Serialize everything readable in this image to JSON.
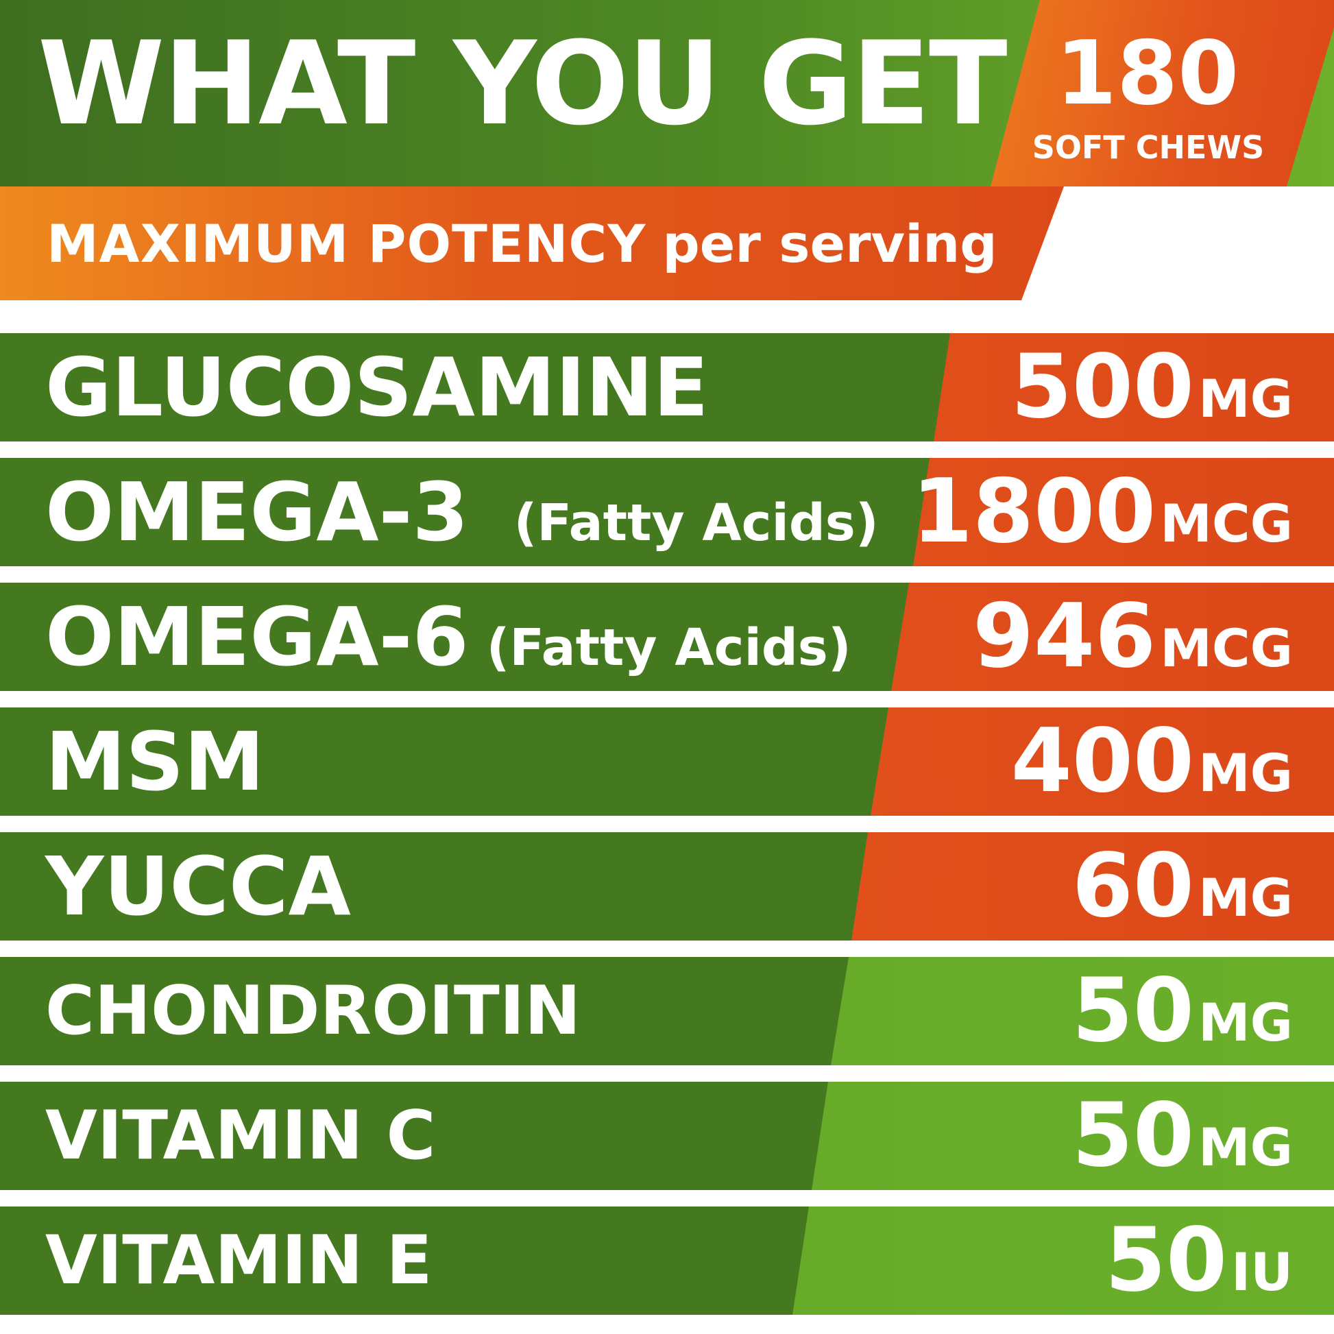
{
  "header": {
    "title": "WHAT YOU GET",
    "badge_count": "180",
    "badge_label": "SOFT CHEWS",
    "colors": {
      "green": "#44791f",
      "lime": "#6aaf2a",
      "orange": "#e2521c"
    }
  },
  "potency": {
    "strong": "MAXIMUM POTENCY",
    "light": "per serving"
  },
  "ingredients": [
    {
      "name": "GLUCOSAMINE",
      "note": "",
      "value": "500",
      "unit": "MG"
    },
    {
      "name": "OMEGA-3",
      "note": "(Fatty Acids)",
      "value": "1800",
      "unit": "MCG"
    },
    {
      "name": "OMEGA-6",
      "note": "(Fatty Acids)",
      "value": "946",
      "unit": "MCG"
    },
    {
      "name": "MSM",
      "note": "",
      "value": "400",
      "unit": "MG"
    },
    {
      "name": "YUCCA",
      "note": "",
      "value": "60",
      "unit": "MG"
    },
    {
      "name": "CHONDROITIN",
      "note": "",
      "value": "50",
      "unit": "MG"
    },
    {
      "name": "VITAMIN C",
      "note": "",
      "value": "50",
      "unit": "MG"
    },
    {
      "name": "VITAMIN E",
      "note": "",
      "value": "50",
      "unit": "IU"
    }
  ]
}
